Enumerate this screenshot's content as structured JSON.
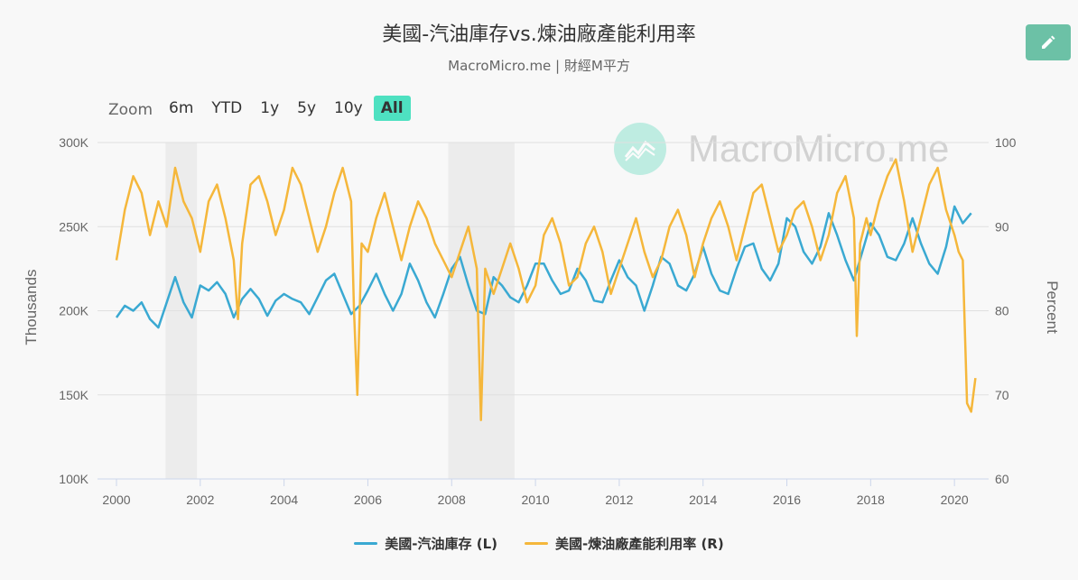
{
  "title": "美國-汽油庫存vs.煉油廠產能利用率",
  "subtitle": "MacroMicro.me | 財經M平方",
  "watermark": "MacroMicro.me",
  "zoom": {
    "label": "Zoom",
    "buttons": [
      "6m",
      "YTD",
      "1y",
      "5y",
      "10y",
      "All"
    ],
    "active": "All"
  },
  "colors": {
    "gasoline": "#3aa9d2",
    "refinery": "#f5b73b",
    "recession": "#e8e8e8",
    "accent": "#4ee1c1"
  },
  "chart_data": {
    "type": "line",
    "title": "美國-汽油庫存vs.煉油廠產能利用率",
    "ylabel_left": "Thousands",
    "ylabel_right": "Percent",
    "ylim_left": [
      100,
      300
    ],
    "ylim_right": [
      60,
      100
    ],
    "xlim": [
      2000,
      2020.6
    ],
    "left_ticks": [
      "100K",
      "150K",
      "200K",
      "250K",
      "300K"
    ],
    "right_ticks": [
      "60",
      "70",
      "80",
      "90",
      "100"
    ],
    "x_ticks": [
      "2000",
      "2002",
      "2004",
      "2006",
      "2008",
      "2010",
      "2012",
      "2014",
      "2016",
      "2018",
      "2020"
    ],
    "recession_bands": [
      [
        2001.17,
        2001.92
      ],
      [
        2007.92,
        2009.5
      ]
    ],
    "grid": true,
    "legend_position": "bottom",
    "series": [
      {
        "name": "美國-汽油庫存 (L)",
        "axis": "left",
        "x": [
          2000.0,
          2000.2,
          2000.4,
          2000.6,
          2000.8,
          2001.0,
          2001.2,
          2001.4,
          2001.6,
          2001.8,
          2002.0,
          2002.2,
          2002.4,
          2002.6,
          2002.8,
          2003.0,
          2003.2,
          2003.4,
          2003.6,
          2003.8,
          2004.0,
          2004.2,
          2004.4,
          2004.6,
          2004.8,
          2005.0,
          2005.2,
          2005.4,
          2005.6,
          2005.8,
          2006.0,
          2006.2,
          2006.4,
          2006.6,
          2006.8,
          2007.0,
          2007.2,
          2007.4,
          2007.6,
          2007.8,
          2008.0,
          2008.2,
          2008.4,
          2008.6,
          2008.8,
          2009.0,
          2009.2,
          2009.4,
          2009.6,
          2009.8,
          2010.0,
          2010.2,
          2010.4,
          2010.6,
          2010.8,
          2011.0,
          2011.2,
          2011.4,
          2011.6,
          2011.8,
          2012.0,
          2012.2,
          2012.4,
          2012.6,
          2012.8,
          2013.0,
          2013.2,
          2013.4,
          2013.6,
          2013.8,
          2014.0,
          2014.2,
          2014.4,
          2014.6,
          2014.8,
          2015.0,
          2015.2,
          2015.4,
          2015.6,
          2015.8,
          2016.0,
          2016.2,
          2016.4,
          2016.6,
          2016.8,
          2017.0,
          2017.2,
          2017.4,
          2017.6,
          2017.8,
          2018.0,
          2018.2,
          2018.4,
          2018.6,
          2018.8,
          2019.0,
          2019.2,
          2019.4,
          2019.6,
          2019.8,
          2020.0,
          2020.2,
          2020.4
        ],
        "values": [
          196,
          203,
          200,
          205,
          195,
          190,
          205,
          220,
          205,
          196,
          215,
          212,
          217,
          210,
          196,
          207,
          213,
          207,
          197,
          206,
          210,
          207,
          205,
          198,
          208,
          218,
          222,
          210,
          198,
          203,
          212,
          222,
          210,
          200,
          210,
          228,
          218,
          205,
          196,
          210,
          225,
          232,
          215,
          200,
          198,
          220,
          215,
          208,
          205,
          215,
          228,
          228,
          218,
          210,
          212,
          225,
          218,
          206,
          205,
          218,
          230,
          220,
          215,
          200,
          215,
          232,
          228,
          215,
          212,
          222,
          238,
          222,
          212,
          210,
          225,
          238,
          240,
          225,
          218,
          228,
          255,
          250,
          235,
          228,
          238,
          258,
          245,
          230,
          218,
          235,
          252,
          245,
          232,
          230,
          240,
          255,
          240,
          228,
          222,
          238,
          262,
          252,
          258
        ]
      },
      {
        "name": "美國-煉油廠產能利用率 (R)",
        "axis": "right",
        "x": [
          2000.0,
          2000.2,
          2000.4,
          2000.6,
          2000.8,
          2001.0,
          2001.2,
          2001.4,
          2001.6,
          2001.8,
          2002.0,
          2002.2,
          2002.4,
          2002.6,
          2002.8,
          2002.9,
          2003.0,
          2003.2,
          2003.4,
          2003.6,
          2003.8,
          2004.0,
          2004.2,
          2004.4,
          2004.6,
          2004.8,
          2005.0,
          2005.2,
          2005.4,
          2005.6,
          2005.67,
          2005.75,
          2005.85,
          2006.0,
          2006.2,
          2006.4,
          2006.6,
          2006.8,
          2007.0,
          2007.2,
          2007.4,
          2007.6,
          2007.8,
          2008.0,
          2008.2,
          2008.4,
          2008.6,
          2008.7,
          2008.8,
          2009.0,
          2009.2,
          2009.4,
          2009.6,
          2009.8,
          2010.0,
          2010.2,
          2010.4,
          2010.6,
          2010.8,
          2011.0,
          2011.2,
          2011.4,
          2011.6,
          2011.8,
          2012.0,
          2012.2,
          2012.4,
          2012.6,
          2012.8,
          2013.0,
          2013.2,
          2013.4,
          2013.6,
          2013.8,
          2014.0,
          2014.2,
          2014.4,
          2014.6,
          2014.8,
          2015.0,
          2015.2,
          2015.4,
          2015.6,
          2015.8,
          2016.0,
          2016.2,
          2016.4,
          2016.6,
          2016.8,
          2017.0,
          2017.2,
          2017.4,
          2017.6,
          2017.67,
          2017.75,
          2017.9,
          2018.0,
          2018.2,
          2018.4,
          2018.6,
          2018.8,
          2019.0,
          2019.2,
          2019.4,
          2019.6,
          2019.8,
          2020.0,
          2020.1,
          2020.2,
          2020.3,
          2020.4,
          2020.5
        ],
        "values": [
          86,
          92,
          96,
          94,
          89,
          93,
          90,
          97,
          93,
          91,
          87,
          93,
          95,
          91,
          86,
          79,
          88,
          95,
          96,
          93,
          89,
          92,
          97,
          95,
          91,
          87,
          90,
          94,
          97,
          93,
          80,
          70,
          88,
          87,
          91,
          94,
          90,
          86,
          90,
          93,
          91,
          88,
          86,
          84,
          87,
          90,
          85,
          67,
          85,
          82,
          85,
          88,
          85,
          81,
          83,
          89,
          91,
          88,
          83,
          84,
          88,
          90,
          87,
          82,
          85,
          88,
          91,
          87,
          84,
          86,
          90,
          92,
          89,
          84,
          88,
          91,
          93,
          90,
          86,
          90,
          94,
          95,
          91,
          87,
          89,
          92,
          93,
          90,
          86,
          89,
          94,
          96,
          91,
          77,
          88,
          91,
          89,
          93,
          96,
          98,
          93,
          87,
          91,
          95,
          97,
          92,
          89,
          87,
          86,
          69,
          68,
          72
        ]
      }
    ]
  }
}
